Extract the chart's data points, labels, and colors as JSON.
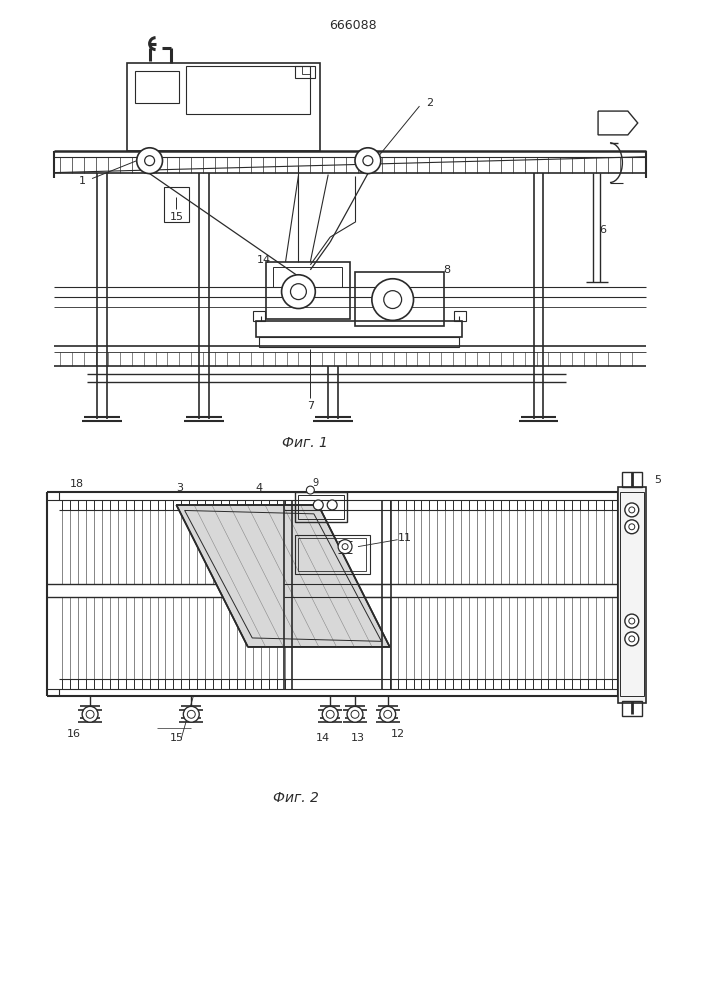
{
  "patent_number": "666088",
  "fig1_caption": "Фиг. 1",
  "fig2_caption": "Фиг. 2",
  "bg_color": "#ffffff",
  "line_color": "#2a2a2a",
  "fig_size": [
    7.07,
    10.0
  ],
  "dpi": 100
}
